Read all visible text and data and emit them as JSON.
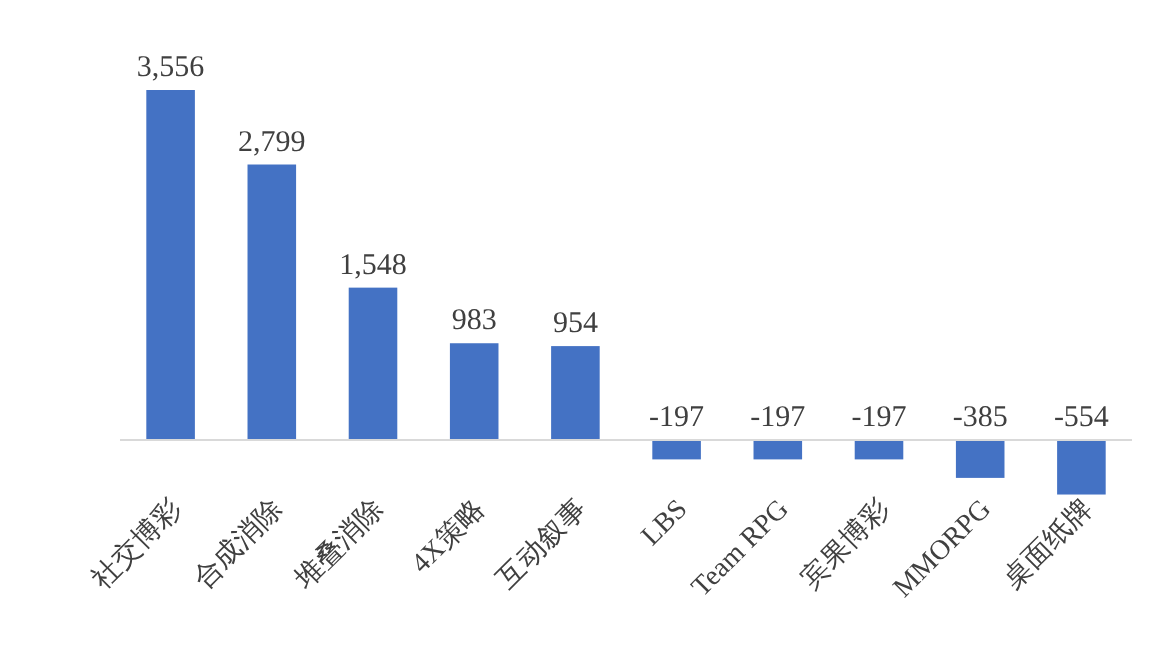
{
  "chart_data": {
    "type": "bar",
    "categories": [
      "社交博彩",
      "合成消除",
      "堆叠消除",
      "4X策略",
      "互动叙事",
      "LBS",
      "Team RPG",
      "宾果博彩",
      "MMORPG",
      "桌面纸牌"
    ],
    "values": [
      3556,
      2799,
      1548,
      983,
      954,
      -197,
      -197,
      -197,
      -385,
      -554
    ],
    "value_labels": [
      "3,556",
      "2,799",
      "1,548",
      "983",
      "954",
      "-197",
      "-197",
      "-197",
      "-385",
      "-554"
    ],
    "color": "#4472c4"
  }
}
